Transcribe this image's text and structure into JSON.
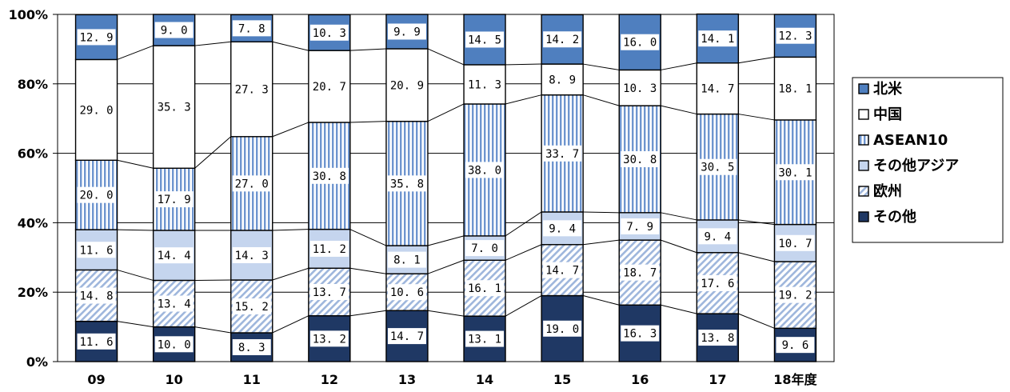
{
  "chart_data": {
    "type": "bar",
    "stacked": true,
    "percent": true,
    "categories": [
      "09",
      "10",
      "11",
      "12",
      "13",
      "14",
      "15",
      "16",
      "17",
      "18年度"
    ],
    "ylim": [
      0,
      100
    ],
    "yticks": [
      "0%",
      "20%",
      "40%",
      "60%",
      "80%",
      "100%"
    ],
    "grid": true,
    "legend_position": "right",
    "series": [
      {
        "name": "その他",
        "color": "#1f3864",
        "pattern": "solid-dark",
        "values": [
          11.6,
          10.0,
          8.3,
          13.2,
          14.7,
          13.1,
          19.0,
          16.3,
          13.8,
          9.6
        ]
      },
      {
        "name": "欧州",
        "color": "#dbe6f4",
        "pattern": "diagonal",
        "values": [
          14.8,
          13.4,
          15.2,
          13.7,
          10.6,
          16.1,
          14.7,
          18.7,
          17.6,
          19.2
        ]
      },
      {
        "name": "その他アジア",
        "color": "#c5d5ee",
        "pattern": "solid-light",
        "values": [
          11.6,
          14.4,
          14.3,
          11.2,
          8.1,
          7.0,
          9.4,
          7.9,
          9.4,
          10.7
        ]
      },
      {
        "name": "ASEAN10",
        "color": "#7aa0d4",
        "pattern": "vertical",
        "values": [
          20.0,
          17.9,
          27.0,
          30.8,
          35.8,
          38.0,
          33.7,
          30.8,
          30.5,
          30.1
        ]
      },
      {
        "name": "中国",
        "color": "#ffffff",
        "pattern": "white",
        "values": [
          29.0,
          35.3,
          27.3,
          20.7,
          20.9,
          11.3,
          8.9,
          10.3,
          14.7,
          18.1
        ]
      },
      {
        "name": "北米",
        "color": "#4f7fbf",
        "pattern": "solid-mid",
        "values": [
          12.9,
          9.0,
          7.8,
          10.3,
          9.9,
          14.5,
          14.2,
          16.0,
          14.1,
          12.3
        ]
      }
    ],
    "legend_order": [
      "北米",
      "中国",
      "ASEAN10",
      "その他アジア",
      "欧州",
      "その他"
    ]
  }
}
